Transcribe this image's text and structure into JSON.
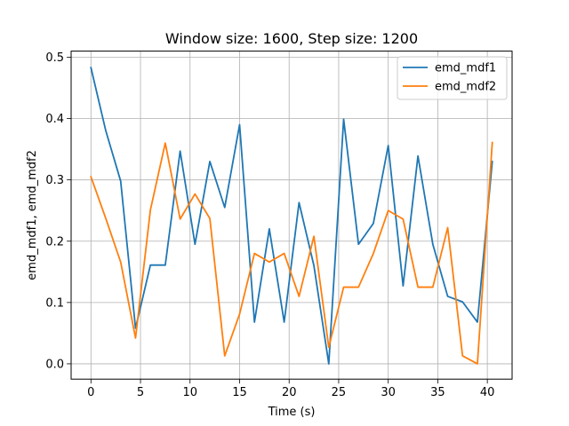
{
  "chart_data": {
    "type": "line",
    "title": "Window size: 1600, Step size: 1200",
    "xlabel": "Time (s)",
    "ylabel": "emd_mdf1, emd_mdf2",
    "xlim": [
      -2.0,
      42.5
    ],
    "ylim": [
      -0.025,
      0.51
    ],
    "xticks": [
      0,
      5,
      10,
      15,
      20,
      25,
      30,
      35,
      40
    ],
    "yticks": [
      0.0,
      0.1,
      0.2,
      0.3,
      0.4,
      0.5
    ],
    "xtick_labels": [
      "0",
      "5",
      "10",
      "15",
      "20",
      "25",
      "30",
      "35",
      "40"
    ],
    "ytick_labels": [
      "0.0",
      "0.1",
      "0.2",
      "0.3",
      "0.4",
      "0.5"
    ],
    "grid": true,
    "legend_position": "upper right",
    "x": [
      0,
      1.5,
      3,
      4.5,
      6,
      7.5,
      9,
      10.5,
      12,
      13.5,
      15,
      16.5,
      18,
      19.5,
      21,
      22.5,
      24,
      25.5,
      27,
      28.5,
      30,
      31.5,
      33,
      34.5,
      36,
      37.5,
      39,
      40.5
    ],
    "series": [
      {
        "name": "emd_mdf1",
        "color": "#1f77b4",
        "values": [
          0.483,
          0.38,
          0.298,
          0.058,
          0.161,
          0.161,
          0.347,
          0.195,
          0.33,
          0.255,
          0.39,
          0.068,
          0.22,
          0.068,
          0.263,
          0.16,
          0.0,
          0.399,
          0.195,
          0.229,
          0.356,
          0.127,
          0.339,
          0.195,
          0.11,
          0.101,
          0.068,
          0.33
        ]
      },
      {
        "name": "emd_mdf2",
        "color": "#ff7f0e",
        "values": [
          0.305,
          0.237,
          0.166,
          0.042,
          0.251,
          0.36,
          0.236,
          0.277,
          0.237,
          0.013,
          0.081,
          0.18,
          0.166,
          0.18,
          0.11,
          0.208,
          0.027,
          0.125,
          0.125,
          0.18,
          0.25,
          0.236,
          0.125,
          0.125,
          0.222,
          0.013,
          0.0,
          0.361
        ]
      }
    ]
  }
}
